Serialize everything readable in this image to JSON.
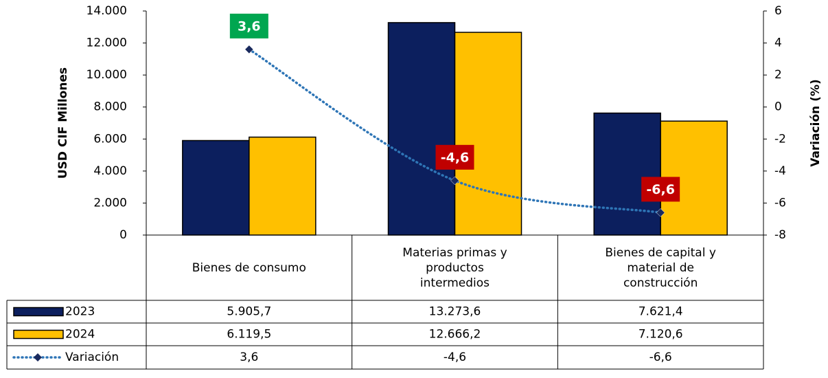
{
  "chart_data": {
    "type": "bar",
    "categories": [
      "Bienes de consumo",
      "Materias primas y productos intermedios",
      "Bienes de capital y material de construcción"
    ],
    "series": [
      {
        "name": "2023",
        "color": "#0c1f5e",
        "values": [
          5905.7,
          13273.6,
          7621.4
        ],
        "value_labels": [
          "5.905,7",
          "13.273,6",
          "7.621,4"
        ]
      },
      {
        "name": "2024",
        "color": "#ffc000",
        "values": [
          6119.5,
          12666.2,
          7120.6
        ],
        "value_labels": [
          "6.119,5",
          "12.666,2",
          "7.120,6"
        ]
      },
      {
        "name": "Variación",
        "type": "line",
        "axis": "y2",
        "color": "#2e75b6",
        "values": [
          3.6,
          -4.6,
          -6.6
        ],
        "value_labels": [
          "3,6",
          "-4,6",
          "-6,6"
        ]
      }
    ],
    "ylabel": "USD CIF Millones",
    "y2label": "Variación (%)",
    "ylim": [
      0,
      14000
    ],
    "yticks": [
      0,
      {
        "value": 2000,
        "label": "2.000"
      },
      {
        "value": 4000,
        "label": "4.000"
      },
      {
        "value": 6000,
        "label": "6.000"
      },
      {
        "value": 8000,
        "label": "8.000"
      },
      {
        "value": 10000,
        "label": "10.000"
      },
      {
        "value": 12000,
        "label": "12.000"
      },
      {
        "value": 14000,
        "label": "14.000"
      }
    ],
    "y2lim": [
      -8,
      6
    ],
    "y2ticks": [
      -8,
      -6,
      -4,
      -2,
      0,
      2,
      4,
      6
    ],
    "grid": false
  }
}
